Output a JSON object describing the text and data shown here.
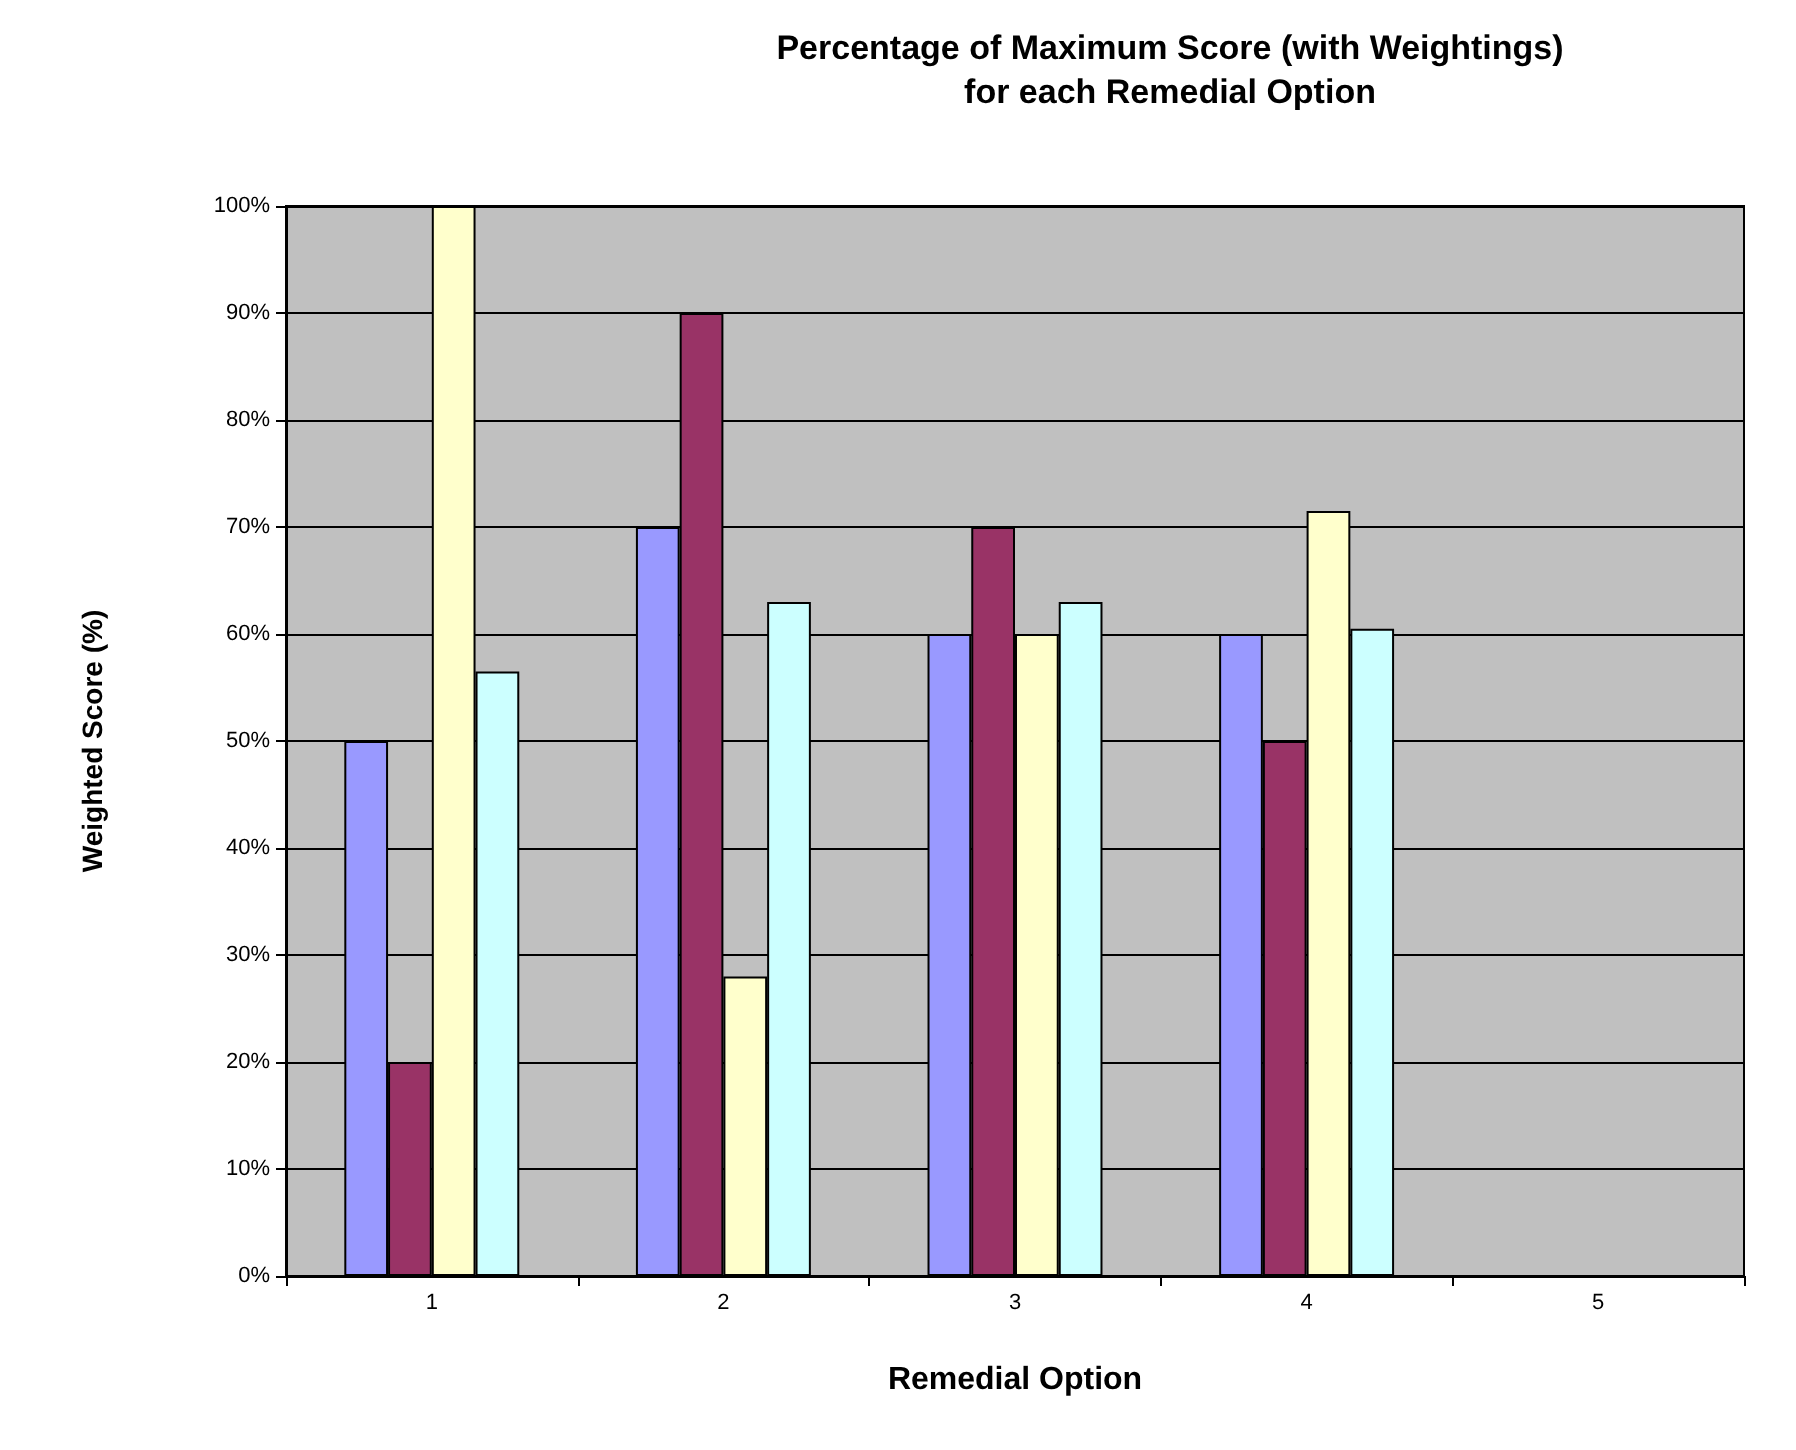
{
  "chart_data": {
    "type": "bar",
    "title": "Percentage of Maximum Score (with Weightings)\nfor each Remedial Option",
    "xlabel": "Remedial Option",
    "ylabel": "Weighted Score (%)",
    "categories": [
      "1",
      "2",
      "3",
      "4",
      "5"
    ],
    "series": [
      {
        "color": "#9999ff",
        "values": [
          50,
          70,
          60,
          60,
          null
        ]
      },
      {
        "color": "#993366",
        "values": [
          20,
          90,
          70,
          50,
          null
        ]
      },
      {
        "color": "#ffffcc",
        "values": [
          100,
          28,
          60,
          71.5,
          null
        ]
      },
      {
        "color": "#ccffff",
        "values": [
          56.5,
          63,
          63,
          60.5,
          null
        ]
      }
    ],
    "ylim": [
      0,
      100
    ],
    "yticks": [
      {
        "value": 0,
        "label": "0%"
      },
      {
        "value": 10,
        "label": "10%"
      },
      {
        "value": 20,
        "label": "20%"
      },
      {
        "value": 30,
        "label": "30%"
      },
      {
        "value": 40,
        "label": "40%"
      },
      {
        "value": 50,
        "label": "50%"
      },
      {
        "value": 60,
        "label": "60%"
      },
      {
        "value": 70,
        "label": "70%"
      },
      {
        "value": 80,
        "label": "80%"
      },
      {
        "value": 90,
        "label": "90%"
      },
      {
        "value": 100,
        "label": "100%"
      }
    ],
    "grid": "y"
  }
}
